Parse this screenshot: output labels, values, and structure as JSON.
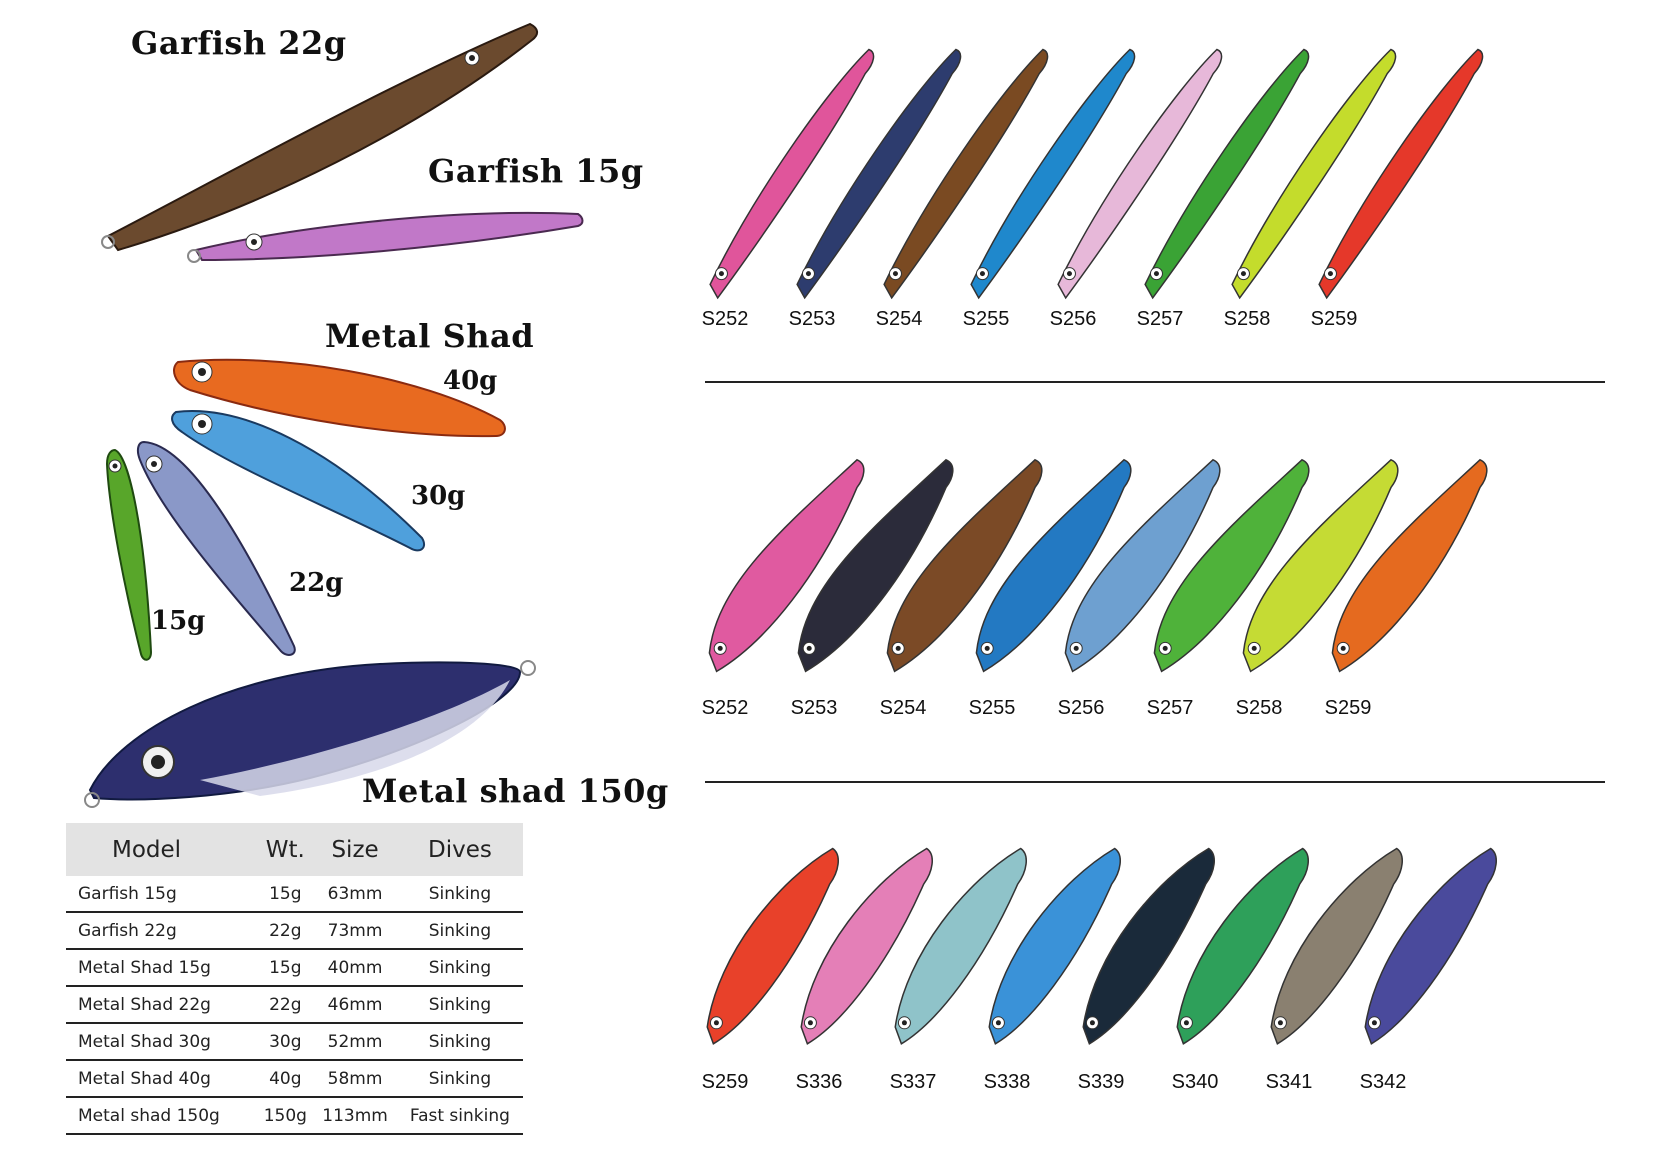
{
  "left": {
    "garfish_22": "Garfish 22g",
    "garfish_15": "Garfish 15g",
    "metal_shad_title": "Metal Shad",
    "weights": {
      "w40": "40g",
      "w30": "30g",
      "w22": "22g",
      "w15": "15g"
    },
    "metal_shad_150": "Metal shad 150g"
  },
  "table": {
    "headers": [
      "Model",
      "Wt.",
      "Size",
      "Dives"
    ],
    "rows": [
      [
        "Garfish 15g",
        "15g",
        "63mm",
        "Sinking"
      ],
      [
        "Garfish 22g",
        "22g",
        "73mm",
        "Sinking"
      ],
      [
        "Metal Shad 15g",
        "15g",
        "40mm",
        "Sinking"
      ],
      [
        "Metal Shad 22g",
        "22g",
        "46mm",
        "Sinking"
      ],
      [
        "Metal Shad 30g",
        "30g",
        "52mm",
        "Sinking"
      ],
      [
        "Metal Shad 40g",
        "40g",
        "58mm",
        "Sinking"
      ],
      [
        "Metal shad 150g",
        "150g",
        "113mm",
        "Fast sinking"
      ]
    ]
  },
  "rows": [
    {
      "codes": [
        "S252",
        "S253",
        "S254",
        "S255",
        "S256",
        "S257",
        "S258",
        "S259"
      ],
      "colors": [
        "#e0559b",
        "#2d3c6e",
        "#7a4a22",
        "#1f88cc",
        "#e7b8d9",
        "#3aa335",
        "#c4dc2c",
        "#e5382a"
      ]
    },
    {
      "codes": [
        "S252",
        "S253",
        "S254",
        "S255",
        "S256",
        "S257",
        "S258",
        "S259"
      ],
      "colors": [
        "#e05aa0",
        "#2b2b3a",
        "#7b4a26",
        "#2379c2",
        "#6ea0d0",
        "#4fb23a",
        "#c5db34",
        "#e56a1f"
      ]
    },
    {
      "codes": [
        "S259",
        "S336",
        "S337",
        "S338",
        "S339",
        "S340",
        "S341",
        "S342"
      ],
      "colors": [
        "#e8412a",
        "#e47fb7",
        "#8fc3c9",
        "#3a92d8",
        "#1a2a3a",
        "#2ea05a",
        "#8a8070",
        "#4a4a9c"
      ]
    }
  ]
}
